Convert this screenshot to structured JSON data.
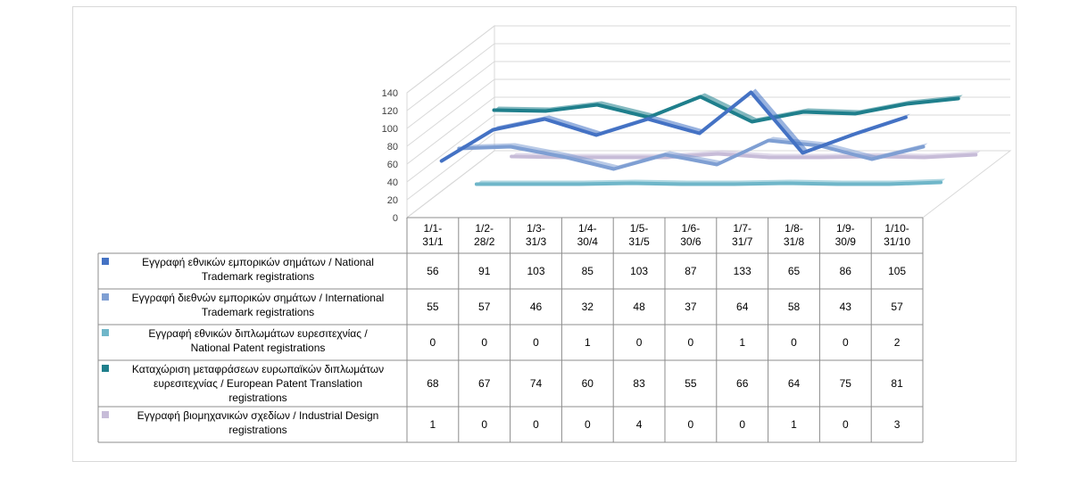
{
  "chart_data": {
    "type": "line",
    "y_axis": {
      "min": 0,
      "max": 140,
      "step": 20,
      "ticks": [
        "0",
        "20",
        "40",
        "60",
        "80",
        "100",
        "120",
        "140"
      ]
    },
    "categories": [
      [
        "1/1-",
        "31/1"
      ],
      [
        "1/2-",
        "28/2"
      ],
      [
        "1/3-",
        "31/3"
      ],
      [
        "1/4-",
        "30/4"
      ],
      [
        "1/5-",
        "31/5"
      ],
      [
        "1/6-",
        "30/6"
      ],
      [
        "1/7-",
        "31/7"
      ],
      [
        "1/8-",
        "31/8"
      ],
      [
        "1/9-",
        "30/9"
      ],
      [
        "1/10-",
        "31/10"
      ]
    ],
    "series": [
      {
        "name": [
          "Εγγραφή εθνικών εμπορικών σημάτων / National",
          "Trademark registrations"
        ],
        "color": "#4472c4",
        "values": [
          56,
          91,
          103,
          85,
          103,
          87,
          133,
          65,
          86,
          105
        ]
      },
      {
        "name": [
          "Εγγραφή διεθνών εμπορικών σημάτων / International",
          "Trademark registrations"
        ],
        "color": "#7f9fd3",
        "values": [
          55,
          57,
          46,
          32,
          48,
          37,
          64,
          58,
          43,
          57
        ]
      },
      {
        "name": [
          "Εγγραφή εθνικών διπλωμάτων ευρεσιτεχνίας /",
          "National Patent registrations"
        ],
        "color": "#6fb6c9",
        "values": [
          0,
          0,
          0,
          1,
          0,
          0,
          1,
          0,
          0,
          2
        ]
      },
      {
        "name": [
          "Καταχώριση μεταφράσεων ευρωπαϊκών διπλωμάτων",
          "ευρεσιτεχνίας / European Patent Translation",
          "registrations"
        ],
        "color": "#1f7f8c",
        "values": [
          68,
          67,
          74,
          60,
          83,
          55,
          66,
          64,
          75,
          81
        ]
      },
      {
        "name": [
          "Εγγραφή βιομηχανικών σχεδίων / Industrial Design",
          "registrations"
        ],
        "color": "#c7bcd8",
        "values": [
          1,
          0,
          0,
          0,
          4,
          0,
          0,
          1,
          0,
          3
        ]
      }
    ]
  }
}
